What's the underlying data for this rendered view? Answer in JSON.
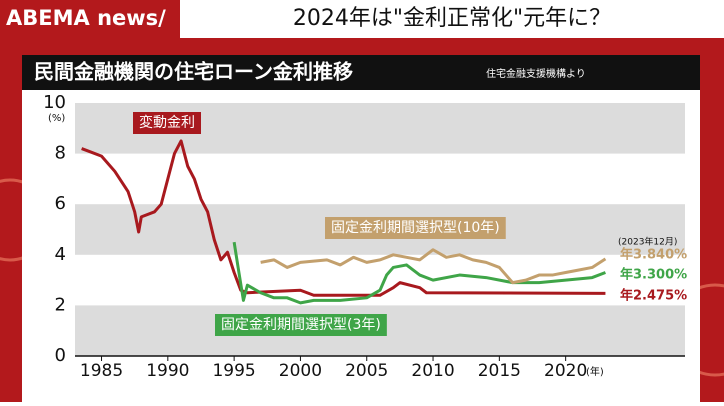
{
  "header": {
    "brand": "ABEMA news/",
    "headline": "2024年は\"金利正常化\"元年に？"
  },
  "chart_data": {
    "type": "line",
    "title": "民間金融機関の住宅ローン金利推移",
    "source": "住宅金融支援機構より",
    "y_unit": "(%)",
    "x_unit": "(年)",
    "date_note": "(2023年12月)",
    "xlim": [
      1983,
      2029
    ],
    "xticks": [
      1985,
      1990,
      1995,
      2000,
      2005,
      2010,
      2015,
      2020
    ],
    "ylim": [
      0,
      10
    ],
    "yticks": [
      0,
      2,
      4,
      6,
      8,
      10
    ],
    "bands": true,
    "series": [
      {
        "name": "変動金利",
        "color": "#a8191e",
        "end_label": "年2.475%",
        "x": [
          1983.5,
          1984,
          1985,
          1986,
          1987,
          1987.5,
          1987.8,
          1988,
          1989,
          1989.5,
          1990,
          1990.5,
          1991,
          1991.5,
          1992,
          1992.5,
          1993,
          1993.5,
          1994,
          1994.5,
          1995,
          1995.5,
          1996,
          2000,
          2001,
          2006,
          2007,
          2007.5,
          2009,
          2009.5,
          2023
        ],
        "values": [
          8.2,
          8.1,
          7.9,
          7.3,
          6.5,
          5.7,
          4.9,
          5.5,
          5.7,
          6.0,
          7.0,
          8.0,
          8.5,
          7.5,
          7.0,
          6.2,
          5.7,
          4.6,
          3.8,
          4.1,
          3.3,
          2.6,
          2.5,
          2.6,
          2.4,
          2.4,
          2.7,
          2.9,
          2.7,
          2.5,
          2.475
        ]
      },
      {
        "name": "固定金利期間選択型(3年)",
        "color": "#3fa548",
        "end_label": "年3.300%",
        "x": [
          1995,
          1995.3,
          1995.7,
          1996,
          1997,
          1998,
          1999,
          2000,
          2001,
          2003,
          2005,
          2006,
          2006.5,
          2007,
          2008,
          2009,
          2010,
          2012,
          2014,
          2016,
          2018,
          2020,
          2022,
          2023
        ],
        "values": [
          4.5,
          3.5,
          2.2,
          2.8,
          2.5,
          2.3,
          2.3,
          2.1,
          2.2,
          2.2,
          2.3,
          2.6,
          3.2,
          3.5,
          3.6,
          3.2,
          3.0,
          3.2,
          3.1,
          2.9,
          2.9,
          3.0,
          3.1,
          3.3
        ]
      },
      {
        "name": "固定金利期間選択型(10年)",
        "color": "#c3a06d",
        "end_label": "年3.840%",
        "x": [
          1997,
          1998,
          1999,
          2000,
          2002,
          2003,
          2004,
          2005,
          2006,
          2007,
          2008,
          2009,
          2010,
          2011,
          2012,
          2013,
          2014,
          2015,
          2016,
          2017,
          2018,
          2019,
          2020,
          2021,
          2022,
          2023
        ],
        "values": [
          3.7,
          3.8,
          3.5,
          3.7,
          3.8,
          3.6,
          3.9,
          3.7,
          3.8,
          4.0,
          3.9,
          3.8,
          4.2,
          3.9,
          4.0,
          3.8,
          3.7,
          3.5,
          2.9,
          3.0,
          3.2,
          3.2,
          3.3,
          3.4,
          3.5,
          3.84
        ]
      }
    ]
  }
}
